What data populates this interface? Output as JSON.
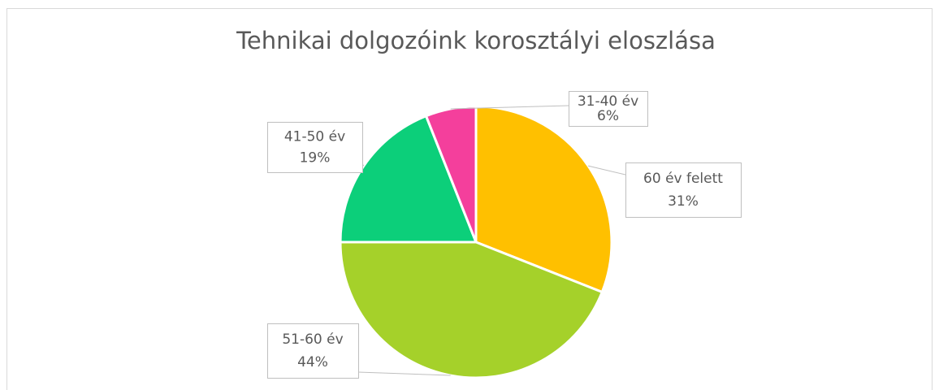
{
  "chart_data": {
    "type": "pie",
    "title": "Tehnikai dolgozóink korosztályi eloszlása",
    "categories": [
      "60 év felett",
      "51-60 év",
      "41-50 év",
      "31-40 év"
    ],
    "values": [
      31,
      44,
      19,
      6
    ],
    "value_labels": [
      "31%",
      "44%",
      "19%",
      "6%"
    ],
    "colors": [
      "#ffc000",
      "#a5d12a",
      "#0ccf7a",
      "#f43f9c"
    ]
  }
}
